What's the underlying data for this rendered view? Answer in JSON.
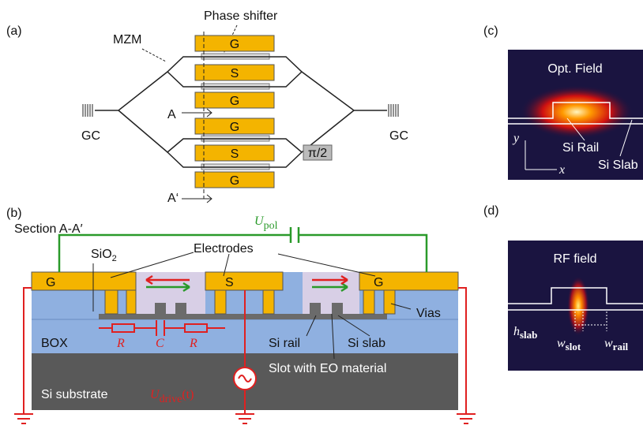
{
  "panel_a": {
    "label": "(a)",
    "phase_shifter": "Phase shifter",
    "mzm": "MZM",
    "electrodes": [
      "G",
      "S",
      "G",
      "G",
      "S",
      "G"
    ],
    "cut_start": "A",
    "cut_end": "A‘",
    "gc_left": "GC",
    "gc_right": "GC",
    "phase": "π/2"
  },
  "panel_b": {
    "label": "(b)",
    "section": "Section A-A′",
    "u_pol": {
      "main": "U",
      "sub": "pol"
    },
    "sio2": {
      "main": "SiO",
      "sub": "2"
    },
    "electrodes_label": "Electrodes",
    "electrodes": [
      "G",
      "S",
      "G"
    ],
    "box": "BOX",
    "r1": "R",
    "c": "C",
    "r2": "R",
    "si_rail": "Si rail",
    "si_slab": "Si slab",
    "vias": "Vias",
    "slot": "Slot with EO material",
    "u_drive": {
      "main": "U",
      "sub": "drive",
      "suffix": "(t)"
    },
    "substrate": "Si substrate"
  },
  "panel_c": {
    "label": "(c)",
    "title": "Opt. Field",
    "si_rail": "Si Rail",
    "si_slab": "Si Slab",
    "y": "y",
    "x": "x"
  },
  "panel_d": {
    "label": "(d)",
    "title": "RF field",
    "h_slab": {
      "main": "h",
      "sub": "slab"
    },
    "w_slot": {
      "main": "w",
      "sub": "slot"
    },
    "w_rail": {
      "main": "w",
      "sub": "rail"
    }
  }
}
